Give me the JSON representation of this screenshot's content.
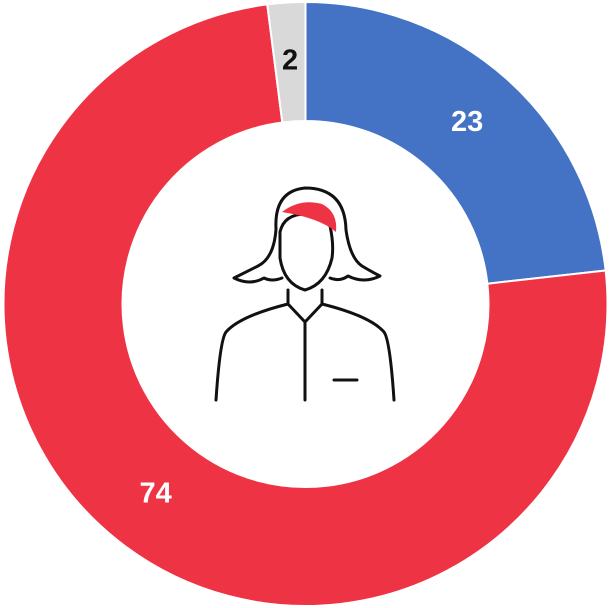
{
  "chart_data": {
    "type": "pie",
    "values": [
      23,
      74,
      2
    ],
    "colors": [
      "#4472c4",
      "#ee3444",
      "#d9d9d9"
    ],
    "donut": true
  }
}
